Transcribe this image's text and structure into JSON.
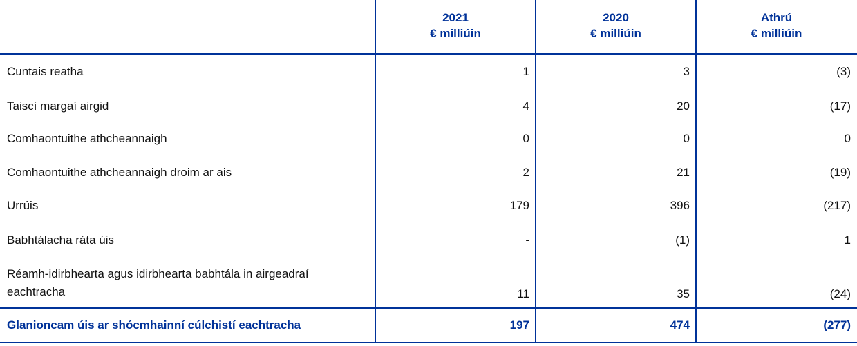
{
  "table": {
    "columns": [
      {
        "year": "2021",
        "unit": "€ milliúin"
      },
      {
        "year": "2020",
        "unit": "€ milliúin"
      },
      {
        "year": "Athrú",
        "unit": "€ milliúin"
      }
    ],
    "rows": [
      {
        "label": "Cuntais reatha",
        "values": [
          "1",
          "3",
          "(3)"
        ]
      },
      {
        "label": "Taiscí margaí airgid",
        "values": [
          "4",
          "20",
          "(17)"
        ]
      },
      {
        "label": "Comhaontuithe athcheannaigh",
        "values": [
          "0",
          "0",
          "0"
        ]
      },
      {
        "label": "Comhaontuithe athcheannaigh droim ar ais",
        "values": [
          "2",
          "21",
          "(19)"
        ]
      },
      {
        "label": "Urrúis",
        "values": [
          "179",
          "396",
          "(217)"
        ]
      },
      {
        "label": "Babhtálacha ráta úis",
        "values": [
          "-",
          "(1)",
          "1"
        ]
      },
      {
        "label": "Réamh-idirbhearta agus idirbhearta babhtála in airgeadraí eachtracha",
        "values": [
          "11",
          "35",
          "(24)"
        ]
      }
    ],
    "total": {
      "label": "Glanioncam úis ar shócmhainní cúlchistí eachtracha",
      "values": [
        "197",
        "474",
        "(277)"
      ]
    }
  }
}
